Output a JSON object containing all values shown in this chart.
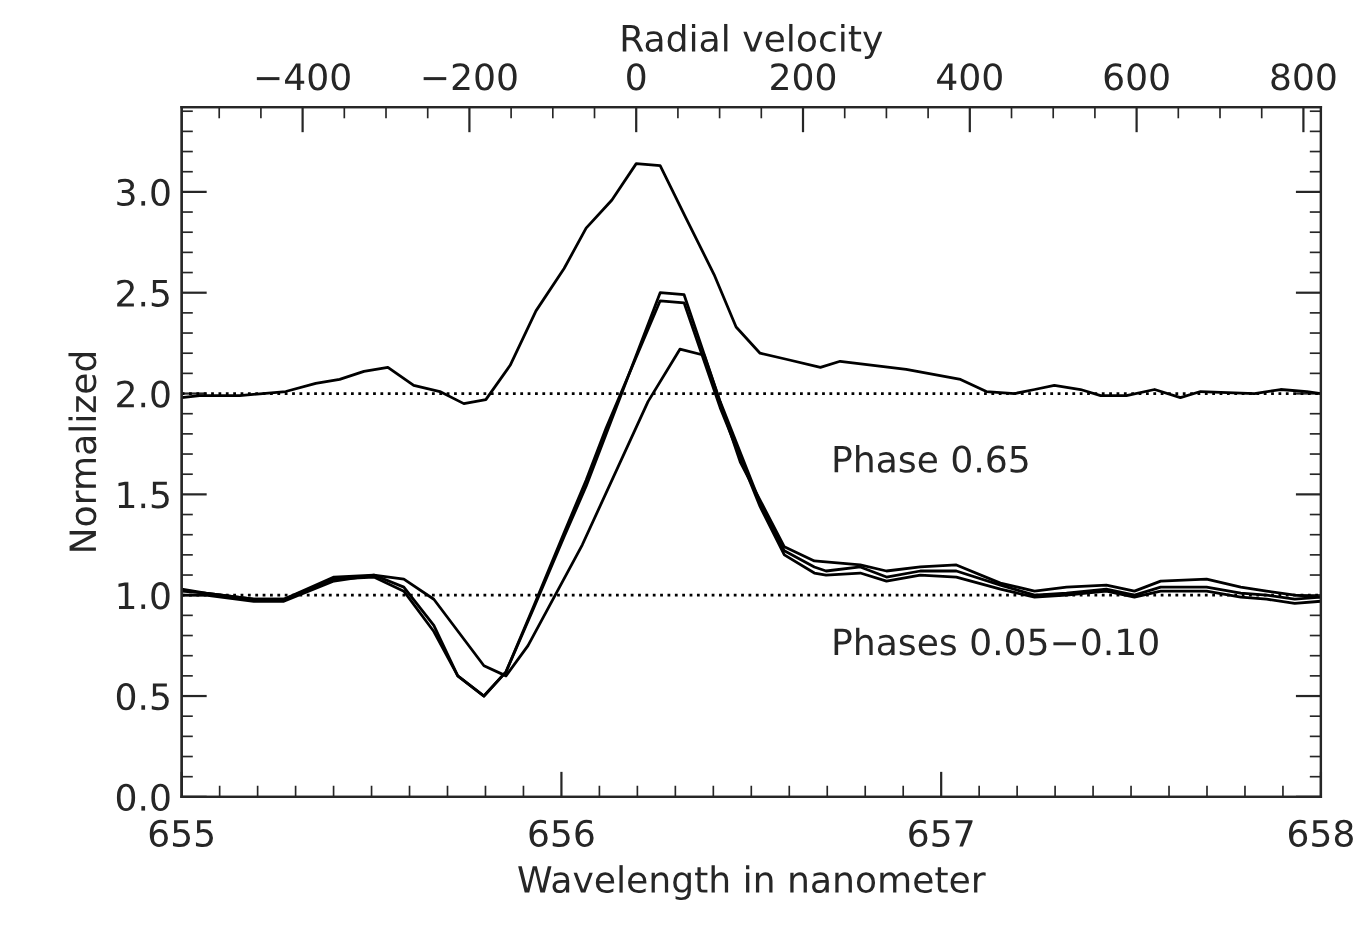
{
  "chart_data": {
    "type": "line",
    "xlabel": "Wavelength in nanometer",
    "ylabel": "Normalized",
    "x2label": "Radial velocity",
    "xlim": [
      655,
      658
    ],
    "xticks": [
      655,
      {
        "value": 655.1,
        "label": null
      },
      {
        "value": 655.2,
        "label": null
      },
      {
        "value": 655.3,
        "label": null
      },
      {
        "value": 655.4,
        "label": null
      },
      {
        "value": 655.5,
        "label": null
      },
      {
        "value": 655.6,
        "label": null
      },
      {
        "value": 655.7,
        "label": null
      },
      {
        "value": 655.8,
        "label": null
      },
      {
        "value": 655.9,
        "label": null
      },
      656,
      {
        "value": 656.1,
        "label": null
      },
      {
        "value": 656.2,
        "label": null
      },
      {
        "value": 656.3,
        "label": null
      },
      {
        "value": 656.4,
        "label": null
      },
      {
        "value": 656.5,
        "label": null
      },
      {
        "value": 656.6,
        "label": null
      },
      {
        "value": 656.7,
        "label": null
      },
      {
        "value": 656.8,
        "label": null
      },
      {
        "value": 656.9,
        "label": null
      },
      657,
      {
        "value": 657.1,
        "label": null
      },
      {
        "value": 657.2,
        "label": null
      },
      {
        "value": 657.3,
        "label": null
      },
      {
        "value": 657.4,
        "label": null
      },
      {
        "value": 657.5,
        "label": null
      },
      {
        "value": 657.6,
        "label": null
      },
      {
        "value": 657.7,
        "label": null
      },
      {
        "value": 657.8,
        "label": null
      },
      {
        "value": 657.9,
        "label": null
      },
      658
    ],
    "ylim": [
      0,
      3.42
    ],
    "yticks": [
      {
        "value": 0,
        "label": "0.0"
      },
      {
        "value": 0.1,
        "label": null
      },
      {
        "value": 0.2,
        "label": null
      },
      {
        "value": 0.3,
        "label": null
      },
      {
        "value": 0.4,
        "label": null
      },
      {
        "value": 0.5,
        "label": "0.5"
      },
      {
        "value": 0.6,
        "label": null
      },
      {
        "value": 0.7,
        "label": null
      },
      {
        "value": 0.8,
        "label": null
      },
      {
        "value": 0.9,
        "label": null
      },
      {
        "value": 1.0,
        "label": "1.0"
      },
      {
        "value": 1.1,
        "label": null
      },
      {
        "value": 1.2,
        "label": null
      },
      {
        "value": 1.3,
        "label": null
      },
      {
        "value": 1.4,
        "label": null
      },
      {
        "value": 1.5,
        "label": "1.5"
      },
      {
        "value": 1.6,
        "label": null
      },
      {
        "value": 1.7,
        "label": null
      },
      {
        "value": 1.8,
        "label": null
      },
      {
        "value": 1.9,
        "label": null
      },
      {
        "value": 2.0,
        "label": "2.0"
      },
      {
        "value": 2.1,
        "label": null
      },
      {
        "value": 2.2,
        "label": null
      },
      {
        "value": 2.3,
        "label": null
      },
      {
        "value": 2.4,
        "label": null
      },
      {
        "value": 2.5,
        "label": "2.5"
      },
      {
        "value": 2.6,
        "label": null
      },
      {
        "value": 2.7,
        "label": null
      },
      {
        "value": 2.8,
        "label": null
      },
      {
        "value": 2.9,
        "label": null
      },
      {
        "value": 3.0,
        "label": "3.0"
      },
      {
        "value": 3.1,
        "label": null
      },
      {
        "value": 3.2,
        "label": null
      },
      {
        "value": 3.3,
        "label": null
      },
      {
        "value": 3.4,
        "label": null
      }
    ],
    "x2lim": [
      -545,
      821
    ],
    "x2ticks": [
      {
        "value": -500,
        "label": null
      },
      {
        "value": -450,
        "label": null
      },
      {
        "value": -400,
        "label": "−400"
      },
      {
        "value": -350,
        "label": null
      },
      {
        "value": -300,
        "label": null
      },
      {
        "value": -250,
        "label": null
      },
      {
        "value": -200,
        "label": "−200"
      },
      {
        "value": -150,
        "label": null
      },
      {
        "value": -100,
        "label": null
      },
      {
        "value": -50,
        "label": null
      },
      0,
      {
        "value": 50,
        "label": null
      },
      {
        "value": 100,
        "label": null
      },
      {
        "value": 150,
        "label": null
      },
      200,
      {
        "value": 250,
        "label": null
      },
      {
        "value": 300,
        "label": null
      },
      {
        "value": 350,
        "label": null
      },
      400,
      {
        "value": 450,
        "label": null
      },
      {
        "value": 500,
        "label": null
      },
      {
        "value": 550,
        "label": null
      },
      600,
      {
        "value": 650,
        "label": null
      },
      {
        "value": 700,
        "label": null
      },
      {
        "value": 750,
        "label": null
      },
      800
    ],
    "grid": false,
    "line_style": "solid",
    "marker": "none",
    "series": [
      {
        "color": "#000000",
        "x": [
          655.0,
          655.047,
          655.153,
          655.274,
          655.353,
          655.416,
          655.48,
          655.543,
          655.611,
          655.68,
          655.743,
          655.801,
          655.865,
          655.933,
          656.007,
          656.065,
          656.133,
          656.197,
          656.26,
          656.328,
          656.402,
          656.46,
          656.523,
          656.592,
          656.682,
          656.734,
          656.908,
          657.051,
          657.119,
          657.193,
          657.246,
          657.298,
          657.367,
          657.42,
          657.488,
          657.562,
          657.63,
          657.683,
          657.825,
          657.894,
          657.963,
          658.0
        ],
        "values": [
          1.98,
          1.99,
          1.99,
          2.01,
          2.05,
          2.07,
          2.11,
          2.13,
          2.04,
          2.01,
          1.95,
          1.97,
          2.14,
          2.41,
          2.62,
          2.82,
          2.96,
          3.14,
          3.13,
          2.87,
          2.59,
          2.33,
          2.2,
          2.17,
          2.13,
          2.16,
          2.12,
          2.07,
          2.01,
          2.0,
          2.02,
          2.04,
          2.02,
          1.99,
          1.99,
          2.02,
          1.98,
          2.01,
          2.0,
          2.02,
          2.01,
          2.0
        ]
      },
      {
        "color": "#000000",
        "x": [
          655.0,
          655.063,
          655.19,
          655.269,
          655.401,
          655.506,
          655.585,
          655.664,
          655.727,
          655.796,
          655.854,
          655.928,
          656.007,
          656.065,
          656.118,
          656.26,
          656.323,
          656.418,
          656.523,
          656.587,
          656.666,
          656.697,
          656.787,
          656.856,
          656.945,
          657.04,
          657.156,
          657.246,
          657.33,
          657.435,
          657.509,
          657.578,
          657.699,
          657.789,
          657.857,
          657.931,
          658.0
        ],
        "values": [
          1.0,
          1.0,
          0.97,
          0.97,
          1.07,
          1.1,
          1.04,
          0.85,
          0.6,
          0.5,
          0.62,
          0.94,
          1.29,
          1.54,
          1.8,
          2.5,
          2.49,
          1.96,
          1.46,
          1.22,
          1.14,
          1.12,
          1.14,
          1.09,
          1.12,
          1.12,
          1.05,
          1.0,
          1.01,
          1.03,
          1.0,
          1.04,
          1.04,
          1.01,
          1.0,
          0.98,
          0.99
        ]
      },
      {
        "color": "#000000",
        "x": [
          655.0,
          655.063,
          655.19,
          655.269,
          655.401,
          655.506,
          655.585,
          655.664,
          655.727,
          655.796,
          655.854,
          655.928,
          656.007,
          656.065,
          656.118,
          656.26,
          656.323,
          656.418,
          656.523,
          656.587,
          656.666,
          656.697,
          656.787,
          656.856,
          656.945,
          657.04,
          657.156,
          657.246,
          657.33,
          657.435,
          657.509,
          657.578,
          657.699,
          657.789,
          657.857,
          657.931,
          658.0
        ],
        "values": [
          1.02,
          1.01,
          0.98,
          0.98,
          1.08,
          1.09,
          1.02,
          0.82,
          0.6,
          0.5,
          0.62,
          0.95,
          1.31,
          1.57,
          1.83,
          2.46,
          2.45,
          1.93,
          1.44,
          1.2,
          1.11,
          1.1,
          1.11,
          1.07,
          1.1,
          1.09,
          1.03,
          0.99,
          1.0,
          1.02,
          0.99,
          1.02,
          1.02,
          0.99,
          0.98,
          0.96,
          0.97
        ]
      },
      {
        "color": "#000000",
        "x": [
          655.0,
          655.063,
          655.19,
          655.269,
          655.401,
          655.506,
          655.585,
          655.664,
          655.796,
          655.854,
          655.912,
          656.055,
          656.228,
          656.312,
          656.376,
          656.471,
          656.587,
          656.666,
          656.787,
          656.856,
          656.945,
          657.04,
          657.156,
          657.246,
          657.33,
          657.435,
          657.509,
          657.578,
          657.699,
          657.789,
          657.857,
          657.931,
          658.0
        ],
        "values": [
          1.03,
          1.01,
          0.98,
          0.98,
          1.09,
          1.1,
          1.08,
          0.98,
          0.65,
          0.6,
          0.75,
          1.25,
          1.96,
          2.22,
          2.19,
          1.66,
          1.24,
          1.17,
          1.15,
          1.12,
          1.14,
          1.15,
          1.06,
          1.02,
          1.04,
          1.05,
          1.02,
          1.07,
          1.08,
          1.04,
          1.02,
          1.0,
          0.99
        ]
      }
    ],
    "ref_lines": [
      {
        "axis": "y",
        "value": 2.0,
        "line_style": "dotted",
        "color": "#000000"
      },
      {
        "axis": "y",
        "value": 1.0,
        "line_style": "dotted",
        "color": "#000000"
      }
    ],
    "annotations": [
      "Phase 0.65",
      "Phases 0.05−0.10"
    ]
  }
}
